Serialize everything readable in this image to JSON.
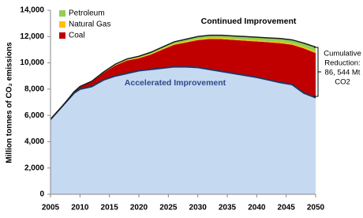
{
  "chart_data": {
    "type": "stacked_area",
    "y_label": "Million tonnes of CO₂ emissions",
    "x": [
      2005,
      2007,
      2009,
      2010,
      2012,
      2014,
      2016,
      2018,
      2020,
      2022,
      2024,
      2026,
      2028,
      2030,
      2032,
      2034,
      2036,
      2038,
      2040,
      2042,
      2044,
      2046,
      2048,
      2050
    ],
    "baseline": {
      "name": "Accelerated Improvement",
      "color": "#c5d9f1",
      "line_color": "#1f3864",
      "values": [
        5700,
        6700,
        7700,
        8000,
        8200,
        8700,
        9000,
        9200,
        9400,
        9500,
        9600,
        9700,
        9700,
        9650,
        9500,
        9350,
        9200,
        9050,
        8900,
        8700,
        8500,
        8350,
        7700,
        7350
      ]
    },
    "series": [
      {
        "name": "Coal",
        "color": "#c00000",
        "values": [
          0,
          0,
          100,
          180,
          360,
          540,
          800,
          980,
          950,
          1130,
          1410,
          1680,
          1850,
          2080,
          2320,
          2460,
          2550,
          2640,
          2730,
          2870,
          3000,
          3030,
          3400,
          3400
        ]
      },
      {
        "name": "Natural Gas",
        "color": "#ffc000",
        "values": [
          0,
          0,
          0,
          10,
          20,
          30,
          40,
          50,
          60,
          60,
          70,
          70,
          80,
          80,
          80,
          80,
          80,
          80,
          80,
          80,
          90,
          90,
          100,
          100
        ]
      },
      {
        "name": "Petroleum",
        "color": "#92d050",
        "values": [
          0,
          0,
          0,
          10,
          20,
          30,
          60,
          70,
          90,
          110,
          120,
          150,
          170,
          190,
          200,
          210,
          220,
          230,
          240,
          250,
          260,
          280,
          300,
          350
        ]
      }
    ],
    "top_label": "Continued Improvement",
    "reduction_label": [
      "Cumulative",
      "Reduction:",
      "86, 544 Mt",
      "CO2"
    ],
    "xlim": [
      2005,
      2050
    ],
    "xticks": [
      2005,
      2010,
      2015,
      2020,
      2025,
      2030,
      2035,
      2040,
      2045,
      2050
    ],
    "ylim": [
      0,
      14000
    ],
    "yticks": [
      0,
      {
        "value": 2000,
        "label": "2,000"
      },
      {
        "value": 4000,
        "label": "4,000"
      },
      {
        "value": 6000,
        "label": "6,000"
      },
      {
        "value": 8000,
        "label": "8,000"
      },
      {
        "value": 10000,
        "label": "10,000"
      },
      {
        "value": 12000,
        "label": "12,000"
      },
      {
        "value": 14000,
        "label": "14,000"
      }
    ],
    "grid": false
  }
}
